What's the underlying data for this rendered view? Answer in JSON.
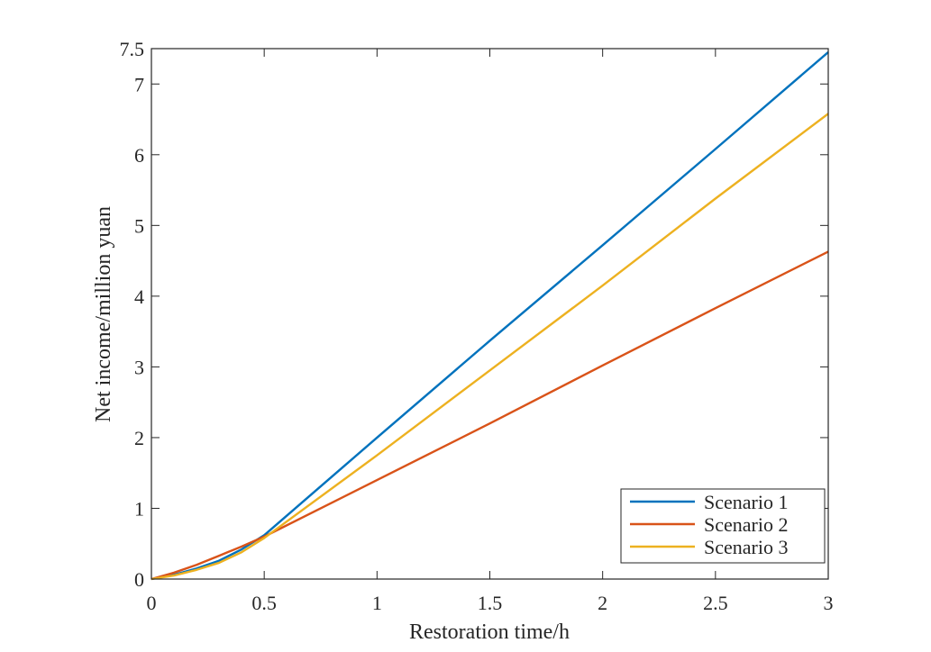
{
  "chart_data": {
    "type": "line",
    "title": "",
    "xlabel": "Restoration time/h",
    "ylabel": "Net income/million yuan",
    "xlim": [
      0,
      3
    ],
    "ylim": [
      0,
      7.5
    ],
    "xticks": [
      0,
      0.5,
      1,
      1.5,
      2,
      2.5,
      3
    ],
    "xtick_labels": [
      "0",
      "0.5",
      "1",
      "1.5",
      "2",
      "2.5",
      "3"
    ],
    "yticks": [
      0,
      1,
      2,
      3,
      4,
      5,
      6,
      7,
      7.5
    ],
    "ytick_labels": [
      "0",
      "1",
      "2",
      "3",
      "4",
      "5",
      "6",
      "7",
      "7.5"
    ],
    "grid": false,
    "legend_position": "bottom-right",
    "series": [
      {
        "name": "Scenario 1",
        "color": "#0072BD",
        "x": [
          0,
          0.1,
          0.2,
          0.3,
          0.4,
          0.5,
          1,
          1.5,
          2,
          2.5,
          3
        ],
        "y": [
          0,
          0.06,
          0.15,
          0.26,
          0.42,
          0.62,
          2.0,
          3.37,
          4.72,
          6.08,
          7.45
        ]
      },
      {
        "name": "Scenario 2",
        "color": "#D95319",
        "x": [
          0,
          0.1,
          0.2,
          0.3,
          0.4,
          0.5,
          1,
          1.5,
          2,
          2.5,
          3
        ],
        "y": [
          0,
          0.09,
          0.2,
          0.33,
          0.46,
          0.6,
          1.4,
          2.2,
          3.02,
          3.83,
          4.63
        ]
      },
      {
        "name": "Scenario 3",
        "color": "#EDB120",
        "x": [
          0,
          0.1,
          0.2,
          0.3,
          0.4,
          0.5,
          1,
          1.5,
          2,
          2.5,
          3
        ],
        "y": [
          0,
          0.05,
          0.13,
          0.23,
          0.38,
          0.58,
          1.75,
          2.95,
          4.15,
          5.38,
          6.58
        ]
      }
    ]
  }
}
